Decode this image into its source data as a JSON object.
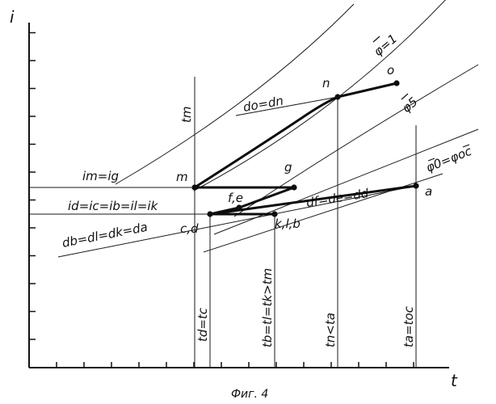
{
  "axes": {
    "y_label": "i",
    "x_label": "t"
  },
  "points": {
    "m": "m",
    "n": "n",
    "o": "o",
    "g": "g",
    "fe": "f,e",
    "cd": "c,d",
    "klb": "k,l,b",
    "a": "a"
  },
  "curves": {
    "phi1": "φ=1",
    "phi5": "φ5",
    "phi0": "φ0=φoc"
  },
  "relations": {
    "do_dn": "do=dn",
    "im_ig": "im=ig",
    "id_ic": "id=ic=ib=il=ik",
    "df_de": "df=de=dd",
    "db_dl": "db=dl=dk=da"
  },
  "verticals": {
    "tm": "tm",
    "td_tc": "td=tc",
    "tb_tl": "tb=tl=tk>tm",
    "tn_ta": "tn<ta",
    "ta_toc": "ta=toc"
  },
  "caption": "Фиг. 4"
}
